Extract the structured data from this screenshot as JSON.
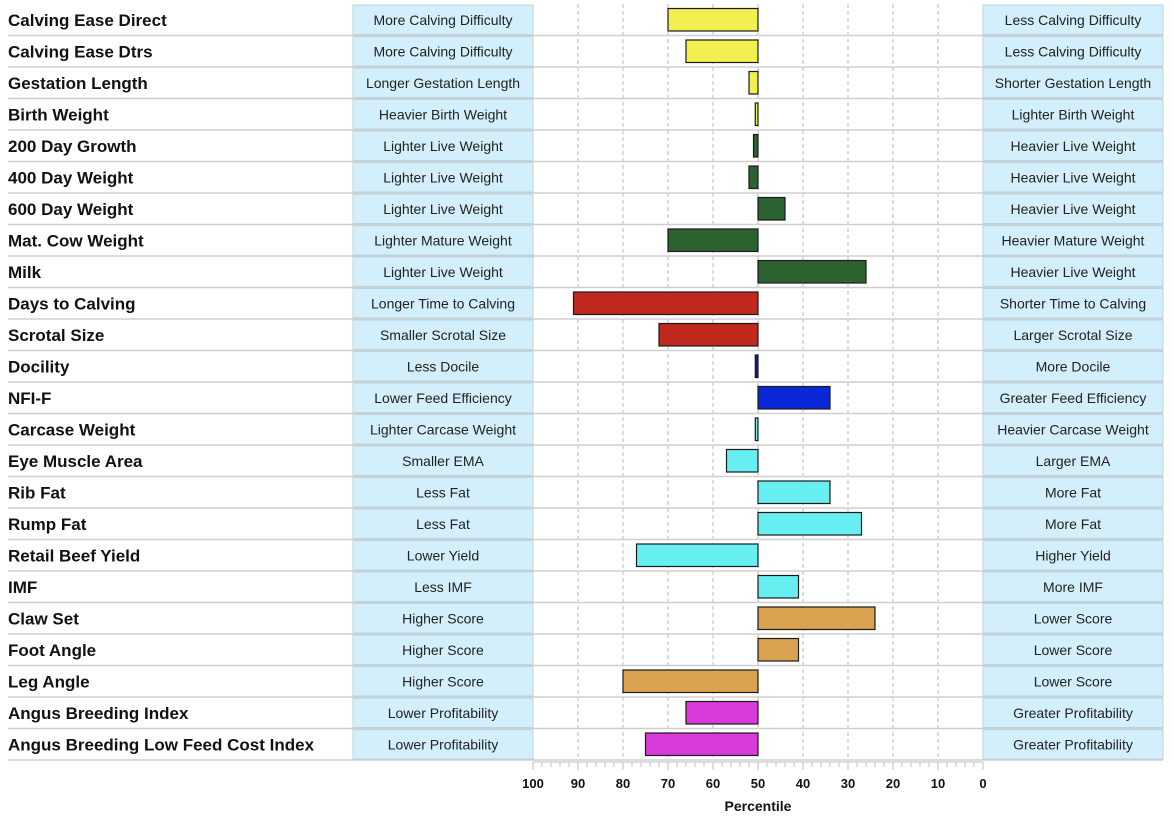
{
  "chart_data": {
    "type": "bar",
    "orientation": "horizontal",
    "xlabel": "Percentile",
    "xlim": [
      100,
      0
    ],
    "baseline": 50,
    "x_ticks": [
      100,
      90,
      80,
      70,
      60,
      50,
      40,
      30,
      20,
      10,
      0
    ],
    "grid": true,
    "rows": [
      {
        "trait": "Calving Ease Direct",
        "left": "More Calving Difficulty",
        "right": "Less Calving Difficulty",
        "value": 70,
        "color": "#f2ef50"
      },
      {
        "trait": "Calving Ease Dtrs",
        "left": "More Calving Difficulty",
        "right": "Less Calving Difficulty",
        "value": 66,
        "color": "#f2ef50"
      },
      {
        "trait": "Gestation Length",
        "left": "Longer Gestation Length",
        "right": "Shorter Gestation Length",
        "value": 52,
        "color": "#f2ef50"
      },
      {
        "trait": "Birth Weight",
        "left": "Heavier Birth Weight",
        "right": "Lighter Birth Weight",
        "value": 50.6,
        "color": "#f2ef50"
      },
      {
        "trait": "200 Day Growth",
        "left": "Lighter Live Weight",
        "right": "Heavier Live Weight",
        "value": 51,
        "color": "#2c6231"
      },
      {
        "trait": "400 Day Weight",
        "left": "Lighter Live Weight",
        "right": "Heavier Live Weight",
        "value": 52,
        "color": "#2c6231"
      },
      {
        "trait": "600 Day Weight",
        "left": "Lighter Live Weight",
        "right": "Heavier Live Weight",
        "value": 44,
        "color": "#2c6231"
      },
      {
        "trait": "Mat. Cow Weight",
        "left": "Lighter Mature Weight",
        "right": "Heavier Mature Weight",
        "value": 70,
        "color": "#2c6231"
      },
      {
        "trait": "Milk",
        "left": "Lighter Live Weight",
        "right": "Heavier Live Weight",
        "value": 26,
        "color": "#2c6231"
      },
      {
        "trait": "Days to Calving",
        "left": "Longer Time to Calving",
        "right": "Shorter Time to Calving",
        "value": 91,
        "color": "#c0281d"
      },
      {
        "trait": "Scrotal Size",
        "left": "Smaller Scrotal Size",
        "right": "Larger Scrotal Size",
        "value": 72,
        "color": "#c0281d"
      },
      {
        "trait": "Docility",
        "left": "Less Docile",
        "right": "More Docile",
        "value": 50.6,
        "color": "#101d73"
      },
      {
        "trait": "NFI-F",
        "left": "Lower Feed Efficiency",
        "right": "Greater Feed Efficiency",
        "value": 34,
        "color": "#0a28d8"
      },
      {
        "trait": "Carcase Weight",
        "left": "Lighter Carcase Weight",
        "right": "Heavier Carcase Weight",
        "value": 50.6,
        "color": "#66eef0"
      },
      {
        "trait": "Eye Muscle Area",
        "left": "Smaller EMA",
        "right": "Larger EMA",
        "value": 57,
        "color": "#66eef0"
      },
      {
        "trait": "Rib Fat",
        "left": "Less Fat",
        "right": "More Fat",
        "value": 34,
        "color": "#66eef0"
      },
      {
        "trait": "Rump Fat",
        "left": "Less Fat",
        "right": "More Fat",
        "value": 27,
        "color": "#66eef0"
      },
      {
        "trait": "Retail Beef Yield",
        "left": "Lower Yield",
        "right": "Higher Yield",
        "value": 77,
        "color": "#66eef0"
      },
      {
        "trait": "IMF",
        "left": "Less IMF",
        "right": "More IMF",
        "value": 41,
        "color": "#66eef0"
      },
      {
        "trait": "Claw Set",
        "left": "Higher Score",
        "right": "Lower Score",
        "value": 24,
        "color": "#d9a250"
      },
      {
        "trait": "Foot Angle",
        "left": "Higher Score",
        "right": "Lower Score",
        "value": 41,
        "color": "#d9a250"
      },
      {
        "trait": "Leg Angle",
        "left": "Higher Score",
        "right": "Lower Score",
        "value": 80,
        "color": "#d9a250"
      },
      {
        "trait": "Angus Breeding Index",
        "left": "Lower Profitability",
        "right": "Greater Profitability",
        "value": 66,
        "color": "#d93ada"
      },
      {
        "trait": "Angus Breeding Low Feed Cost Index",
        "left": "Lower Profitability",
        "right": "Greater Profitability",
        "value": 75,
        "color": "#d93ada"
      }
    ]
  }
}
